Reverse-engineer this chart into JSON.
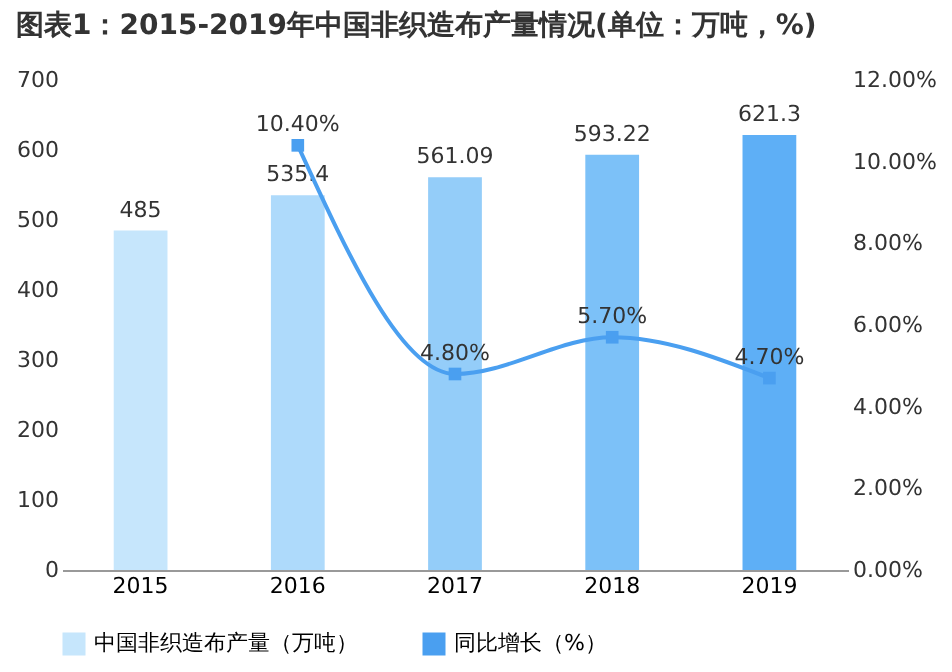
{
  "chart_data": {
    "type": "bar",
    "title": "图表1：2015-2019年中国非织造布产量情况(单位：万吨，%)",
    "categories": [
      "2015",
      "2016",
      "2017",
      "2018",
      "2019"
    ],
    "series": [
      {
        "name": "中国非织造布产量（万吨）",
        "colors": [
          "#c6e6fc",
          "#aedafb",
          "#94cdf9",
          "#7cc1f8",
          "#5eaff6"
        ],
        "values": [
          485,
          535.4,
          561.09,
          593.22,
          621.3
        ],
        "value_labels": [
          "485",
          "535.4",
          "561.09",
          "593.22",
          "621.3"
        ]
      },
      {
        "name": "同比增长（%）",
        "type": "line",
        "axis": "y2",
        "color": "#4a9ff0",
        "values": [
          null,
          10.4,
          4.8,
          5.7,
          4.7
        ],
        "value_labels": [
          null,
          "10.40%",
          "4.80%",
          "5.70%",
          "4.70%"
        ]
      }
    ],
    "ylim": [
      0,
      700
    ],
    "yticks": [
      0,
      100,
      200,
      300,
      400,
      500,
      600,
      700
    ],
    "y2lim": [
      0,
      12
    ],
    "y2ticks": [
      {
        "value": 0,
        "label": "0.00%"
      },
      {
        "value": 2,
        "label": "2.00%"
      },
      {
        "value": 4,
        "label": "4.00%"
      },
      {
        "value": 6,
        "label": "6.00%"
      },
      {
        "value": 8,
        "label": "8.00%"
      },
      {
        "value": 10,
        "label": "10.00%"
      },
      {
        "value": 12,
        "label": "12.00%"
      }
    ],
    "marker": "square",
    "legend": "bottom",
    "grid": false
  }
}
